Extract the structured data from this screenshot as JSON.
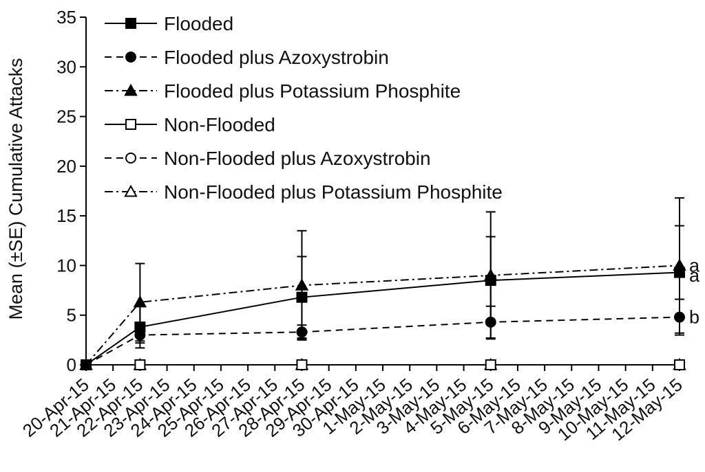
{
  "chart_data": {
    "type": "line",
    "title": "",
    "xlabel": "",
    "ylabel": "Mean (±SE) Cumulative Attacks",
    "ylim": [
      0,
      35
    ],
    "yticks": [
      0,
      5,
      10,
      15,
      20,
      25,
      30,
      35
    ],
    "grid": false,
    "legend_position": "top-left",
    "x": [
      "20-Apr-15",
      "21-Apr-15",
      "22-Apr-15",
      "23-Apr-15",
      "24-Apr-15",
      "25-Apr-15",
      "26-Apr-15",
      "27-Apr-15",
      "28-Apr-15",
      "29-Apr-15",
      "30-Apr-15",
      "1-May-15",
      "2-May-15",
      "3-May-15",
      "4-May-15",
      "5-May-15",
      "6-May-15",
      "7-May-15",
      "8-May-15",
      "9-May-15",
      "10-May-15",
      "11-May-15",
      "12-May-15"
    ],
    "series": [
      {
        "name": "Flooded",
        "marker": "square-filled",
        "line_style": "solid",
        "points": [
          {
            "x": "20-Apr-15",
            "y": 0
          },
          {
            "x": "22-Apr-15",
            "y": 3.8,
            "se": 2.1
          },
          {
            "x": "28-Apr-15",
            "y": 6.8,
            "se": 4.1
          },
          {
            "x": "5-May-15",
            "y": 8.5,
            "se": 4.4
          },
          {
            "x": "12-May-15",
            "y": 9.3,
            "se": 4.7
          }
        ]
      },
      {
        "name": "Flooded plus Azoxystrobin",
        "marker": "circle-filled",
        "line_style": "dashed",
        "points": [
          {
            "x": "20-Apr-15",
            "y": 0
          },
          {
            "x": "22-Apr-15",
            "y": 3.0,
            "se": 0.8
          },
          {
            "x": "28-Apr-15",
            "y": 3.3,
            "se": 0.7
          },
          {
            "x": "5-May-15",
            "y": 4.3,
            "se": 1.6
          },
          {
            "x": "12-May-15",
            "y": 4.8,
            "se": 1.8
          }
        ]
      },
      {
        "name": "Flooded plus Potassium Phosphite",
        "marker": "triangle-filled",
        "line_style": "dash-dot",
        "points": [
          {
            "x": "20-Apr-15",
            "y": 0
          },
          {
            "x": "22-Apr-15",
            "y": 6.3,
            "se": 3.9
          },
          {
            "x": "28-Apr-15",
            "y": 8.0,
            "se": 5.5
          },
          {
            "x": "5-May-15",
            "y": 9.0,
            "se": 6.4
          },
          {
            "x": "12-May-15",
            "y": 10.0,
            "se": 6.8
          }
        ]
      },
      {
        "name": "Non-Flooded",
        "marker": "square-open",
        "line_style": "solid",
        "points": [
          {
            "x": "20-Apr-15",
            "y": 0
          },
          {
            "x": "22-Apr-15",
            "y": 0
          },
          {
            "x": "28-Apr-15",
            "y": 0
          },
          {
            "x": "5-May-15",
            "y": 0
          },
          {
            "x": "12-May-15",
            "y": 0
          }
        ]
      },
      {
        "name": "Non-Flooded plus Azoxystrobin",
        "marker": "circle-open",
        "line_style": "dashed",
        "points": [
          {
            "x": "20-Apr-15",
            "y": 0
          },
          {
            "x": "22-Apr-15",
            "y": 0
          },
          {
            "x": "28-Apr-15",
            "y": 0
          },
          {
            "x": "5-May-15",
            "y": 0
          },
          {
            "x": "12-May-15",
            "y": 0
          }
        ]
      },
      {
        "name": "Non-Flooded plus Potassium Phosphite",
        "marker": "triangle-open",
        "line_style": "dash-dot",
        "points": [
          {
            "x": "20-Apr-15",
            "y": 0
          },
          {
            "x": "22-Apr-15",
            "y": 0
          },
          {
            "x": "28-Apr-15",
            "y": 0
          },
          {
            "x": "5-May-15",
            "y": 0
          },
          {
            "x": "12-May-15",
            "y": 0
          }
        ]
      }
    ],
    "annotations": [
      {
        "text": "a",
        "x": "12-May-15",
        "y": 10.0
      },
      {
        "text": "a",
        "x": "12-May-15",
        "y": 9.0
      },
      {
        "text": "b",
        "x": "12-May-15",
        "y": 4.8
      }
    ]
  }
}
